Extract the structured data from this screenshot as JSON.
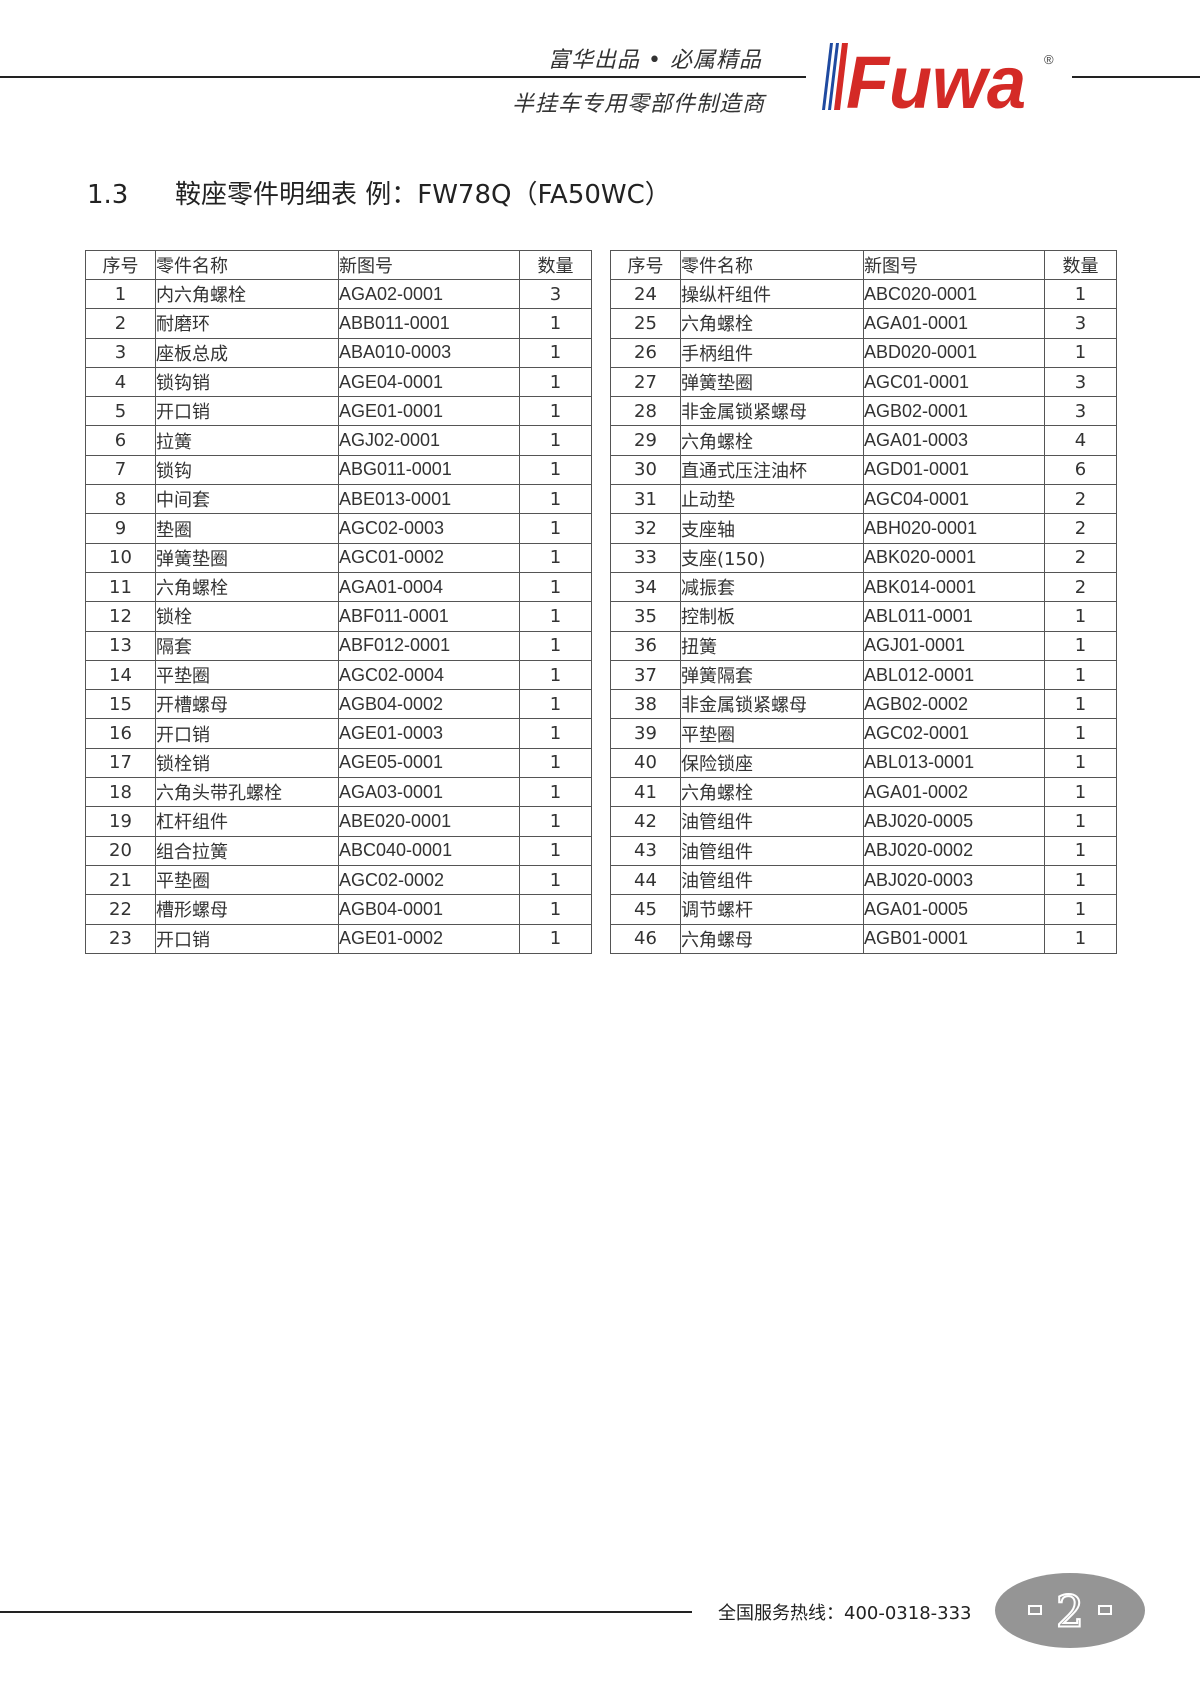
{
  "header": {
    "slogan_top": "富华出品 • 必属精品",
    "slogan_bottom": "半挂车专用零部件制造商",
    "brand": "Fuwa",
    "brand_mark": "®",
    "colors": {
      "brand_red": "#d42a26",
      "brand_blue": "#1f4aa0"
    }
  },
  "section": {
    "number": "1.3",
    "title": "鞍座零件明细表 例：FW78Q（FA50WC）"
  },
  "table": {
    "columns": [
      "序号",
      "零件名称",
      "新图号",
      "数量"
    ],
    "left_rows": [
      [
        "1",
        "内六角螺栓",
        "AGA02-0001",
        "3"
      ],
      [
        "2",
        "耐磨环",
        "ABB011-0001",
        "1"
      ],
      [
        "3",
        "座板总成",
        "ABA010-0003",
        "1"
      ],
      [
        "4",
        "锁钩销",
        "AGE04-0001",
        "1"
      ],
      [
        "5",
        "开口销",
        "AGE01-0001",
        "1"
      ],
      [
        "6",
        "拉簧",
        "AGJ02-0001",
        "1"
      ],
      [
        "7",
        "锁钩",
        "ABG011-0001",
        "1"
      ],
      [
        "8",
        "中间套",
        "ABE013-0001",
        "1"
      ],
      [
        "9",
        "垫圈",
        "AGC02-0003",
        "1"
      ],
      [
        "10",
        "弹簧垫圈",
        "AGC01-0002",
        "1"
      ],
      [
        "11",
        "六角螺栓",
        "AGA01-0004",
        "1"
      ],
      [
        "12",
        "锁栓",
        "ABF011-0001",
        "1"
      ],
      [
        "13",
        "隔套",
        "ABF012-0001",
        "1"
      ],
      [
        "14",
        "平垫圈",
        "AGC02-0004",
        "1"
      ],
      [
        "15",
        "开槽螺母",
        "AGB04-0002",
        "1"
      ],
      [
        "16",
        "开口销",
        "AGE01-0003",
        "1"
      ],
      [
        "17",
        "锁栓销",
        "AGE05-0001",
        "1"
      ],
      [
        "18",
        "六角头带孔螺栓",
        "AGA03-0001",
        "1"
      ],
      [
        "19",
        "杠杆组件",
        "ABE020-0001",
        "1"
      ],
      [
        "20",
        "组合拉簧",
        "ABC040-0001",
        "1"
      ],
      [
        "21",
        "平垫圈",
        "AGC02-0002",
        "1"
      ],
      [
        "22",
        "槽形螺母",
        "AGB04-0001",
        "1"
      ],
      [
        "23",
        "开口销",
        "AGE01-0002",
        "1"
      ]
    ],
    "right_rows": [
      [
        "24",
        "操纵杆组件",
        "ABC020-0001",
        "1"
      ],
      [
        "25",
        "六角螺栓",
        "AGA01-0001",
        "3"
      ],
      [
        "26",
        "手柄组件",
        "ABD020-0001",
        "1"
      ],
      [
        "27",
        "弹簧垫圈",
        "AGC01-0001",
        "3"
      ],
      [
        "28",
        "非金属锁紧螺母",
        "AGB02-0001",
        "3"
      ],
      [
        "29",
        "六角螺栓",
        "AGA01-0003",
        "4"
      ],
      [
        "30",
        "直通式压注油杯",
        "AGD01-0001",
        "6"
      ],
      [
        "31",
        "止动垫",
        "AGC04-0001",
        "2"
      ],
      [
        "32",
        "支座轴",
        "ABH020-0001",
        "2"
      ],
      [
        "33",
        "支座(150)",
        "ABK020-0001",
        "2"
      ],
      [
        "34",
        "减振套",
        "ABK014-0001",
        "2"
      ],
      [
        "35",
        "控制板",
        "ABL011-0001",
        "1"
      ],
      [
        "36",
        "扭簧",
        "AGJ01-0001",
        "1"
      ],
      [
        "37",
        "弹簧隔套",
        "ABL012-0001",
        "1"
      ],
      [
        "38",
        "非金属锁紧螺母",
        "AGB02-0002",
        "1"
      ],
      [
        "39",
        "平垫圈",
        "AGC02-0001",
        "1"
      ],
      [
        "40",
        "保险锁座",
        "ABL013-0001",
        "1"
      ],
      [
        "41",
        "六角螺栓",
        "AGA01-0002",
        "1"
      ],
      [
        "42",
        "油管组件",
        "ABJ020-0005",
        "1"
      ],
      [
        "43",
        "油管组件",
        "ABJ020-0002",
        "1"
      ],
      [
        "44",
        "油管组件",
        "ABJ020-0003",
        "1"
      ],
      [
        "45",
        "调节螺杆",
        "AGA01-0005",
        "1"
      ],
      [
        "46",
        "六角螺母",
        "AGB01-0001",
        "1"
      ]
    ]
  },
  "footer": {
    "hotline": "全国服务热线：400-0318-333",
    "page_number": "2",
    "badge_color": "#959595"
  }
}
